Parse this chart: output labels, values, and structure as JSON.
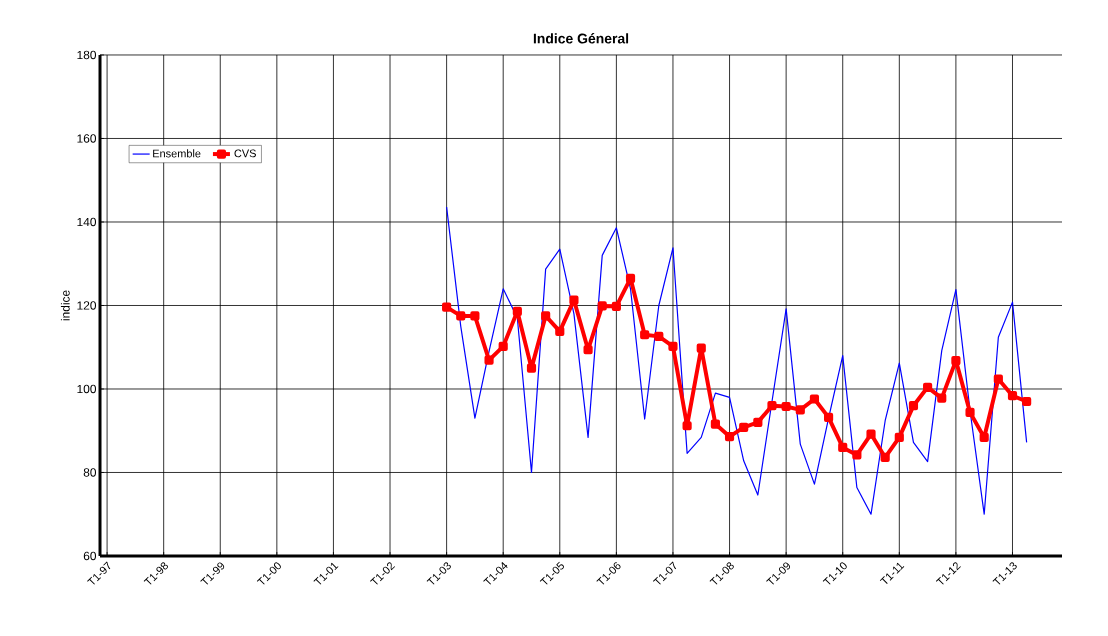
{
  "chart_data": {
    "type": "line",
    "title": "Indice Géneral",
    "ylabel": "indice",
    "categories": [
      "T1-97",
      null,
      null,
      null,
      "T1-98",
      null,
      null,
      null,
      "T1-99",
      null,
      null,
      null,
      "T1-00",
      null,
      null,
      null,
      "T1-01",
      null,
      null,
      null,
      "T1-02",
      null,
      null,
      null,
      "T1-03",
      null,
      null,
      null,
      "T1-04",
      null,
      null,
      null,
      "T1-05",
      null,
      null,
      null,
      "T1-06",
      null,
      null,
      null,
      "T1-07",
      null,
      null,
      null,
      "T1-08",
      null,
      null,
      null,
      "T1-09",
      null,
      null,
      null,
      "T1-10",
      null,
      null,
      null,
      "T1-11",
      null,
      null,
      null,
      "T1-12",
      null,
      null,
      null,
      "T1-13",
      null,
      null,
      null
    ],
    "series": [
      {
        "name": "Ensemble",
        "color": "#0000ff",
        "marker": "none",
        "values": [
          null,
          null,
          null,
          null,
          null,
          null,
          null,
          null,
          null,
          null,
          null,
          null,
          null,
          null,
          null,
          null,
          null,
          null,
          null,
          null,
          null,
          null,
          null,
          null,
          143.6,
          115,
          93,
          109,
          124,
          117,
          80,
          128.7,
          133.5,
          118,
          88.4,
          132,
          138.6,
          124,
          92.8,
          120,
          133.8,
          84.6,
          88.4,
          99,
          98,
          82.8,
          74.6,
          97,
          119.2,
          86.8,
          77.2,
          93,
          108,
          76.4,
          70,
          92.4,
          106.2,
          87.2,
          82.6,
          109.2,
          123.8,
          94.8,
          70,
          112.4,
          120.8,
          87.2,
          null,
          null
        ]
      },
      {
        "name": "CVS",
        "color": "#ff0000",
        "marker": "square",
        "values": [
          null,
          null,
          null,
          null,
          null,
          null,
          null,
          null,
          null,
          null,
          null,
          null,
          null,
          null,
          null,
          null,
          null,
          null,
          null,
          null,
          null,
          null,
          null,
          null,
          119.6,
          117.5,
          117.5,
          106.9,
          110.2,
          118.6,
          105,
          117.5,
          113.8,
          121.3,
          109.4,
          119.9,
          119.8,
          126.5,
          113,
          112.6,
          110.2,
          91.2,
          109.8,
          91.6,
          88.6,
          90.8,
          92,
          96,
          95.8,
          95,
          97.6,
          93.2,
          86,
          84.2,
          89.2,
          83.6,
          88.4,
          96,
          100.4,
          97.8,
          106.8,
          94.4,
          88.4,
          102.4,
          98.4,
          97,
          null,
          null
        ]
      }
    ],
    "ylim": [
      60,
      180
    ],
    "yticks": [
      60,
      80,
      100,
      120,
      140,
      160,
      180
    ],
    "grid": true,
    "legend": "top left"
  }
}
